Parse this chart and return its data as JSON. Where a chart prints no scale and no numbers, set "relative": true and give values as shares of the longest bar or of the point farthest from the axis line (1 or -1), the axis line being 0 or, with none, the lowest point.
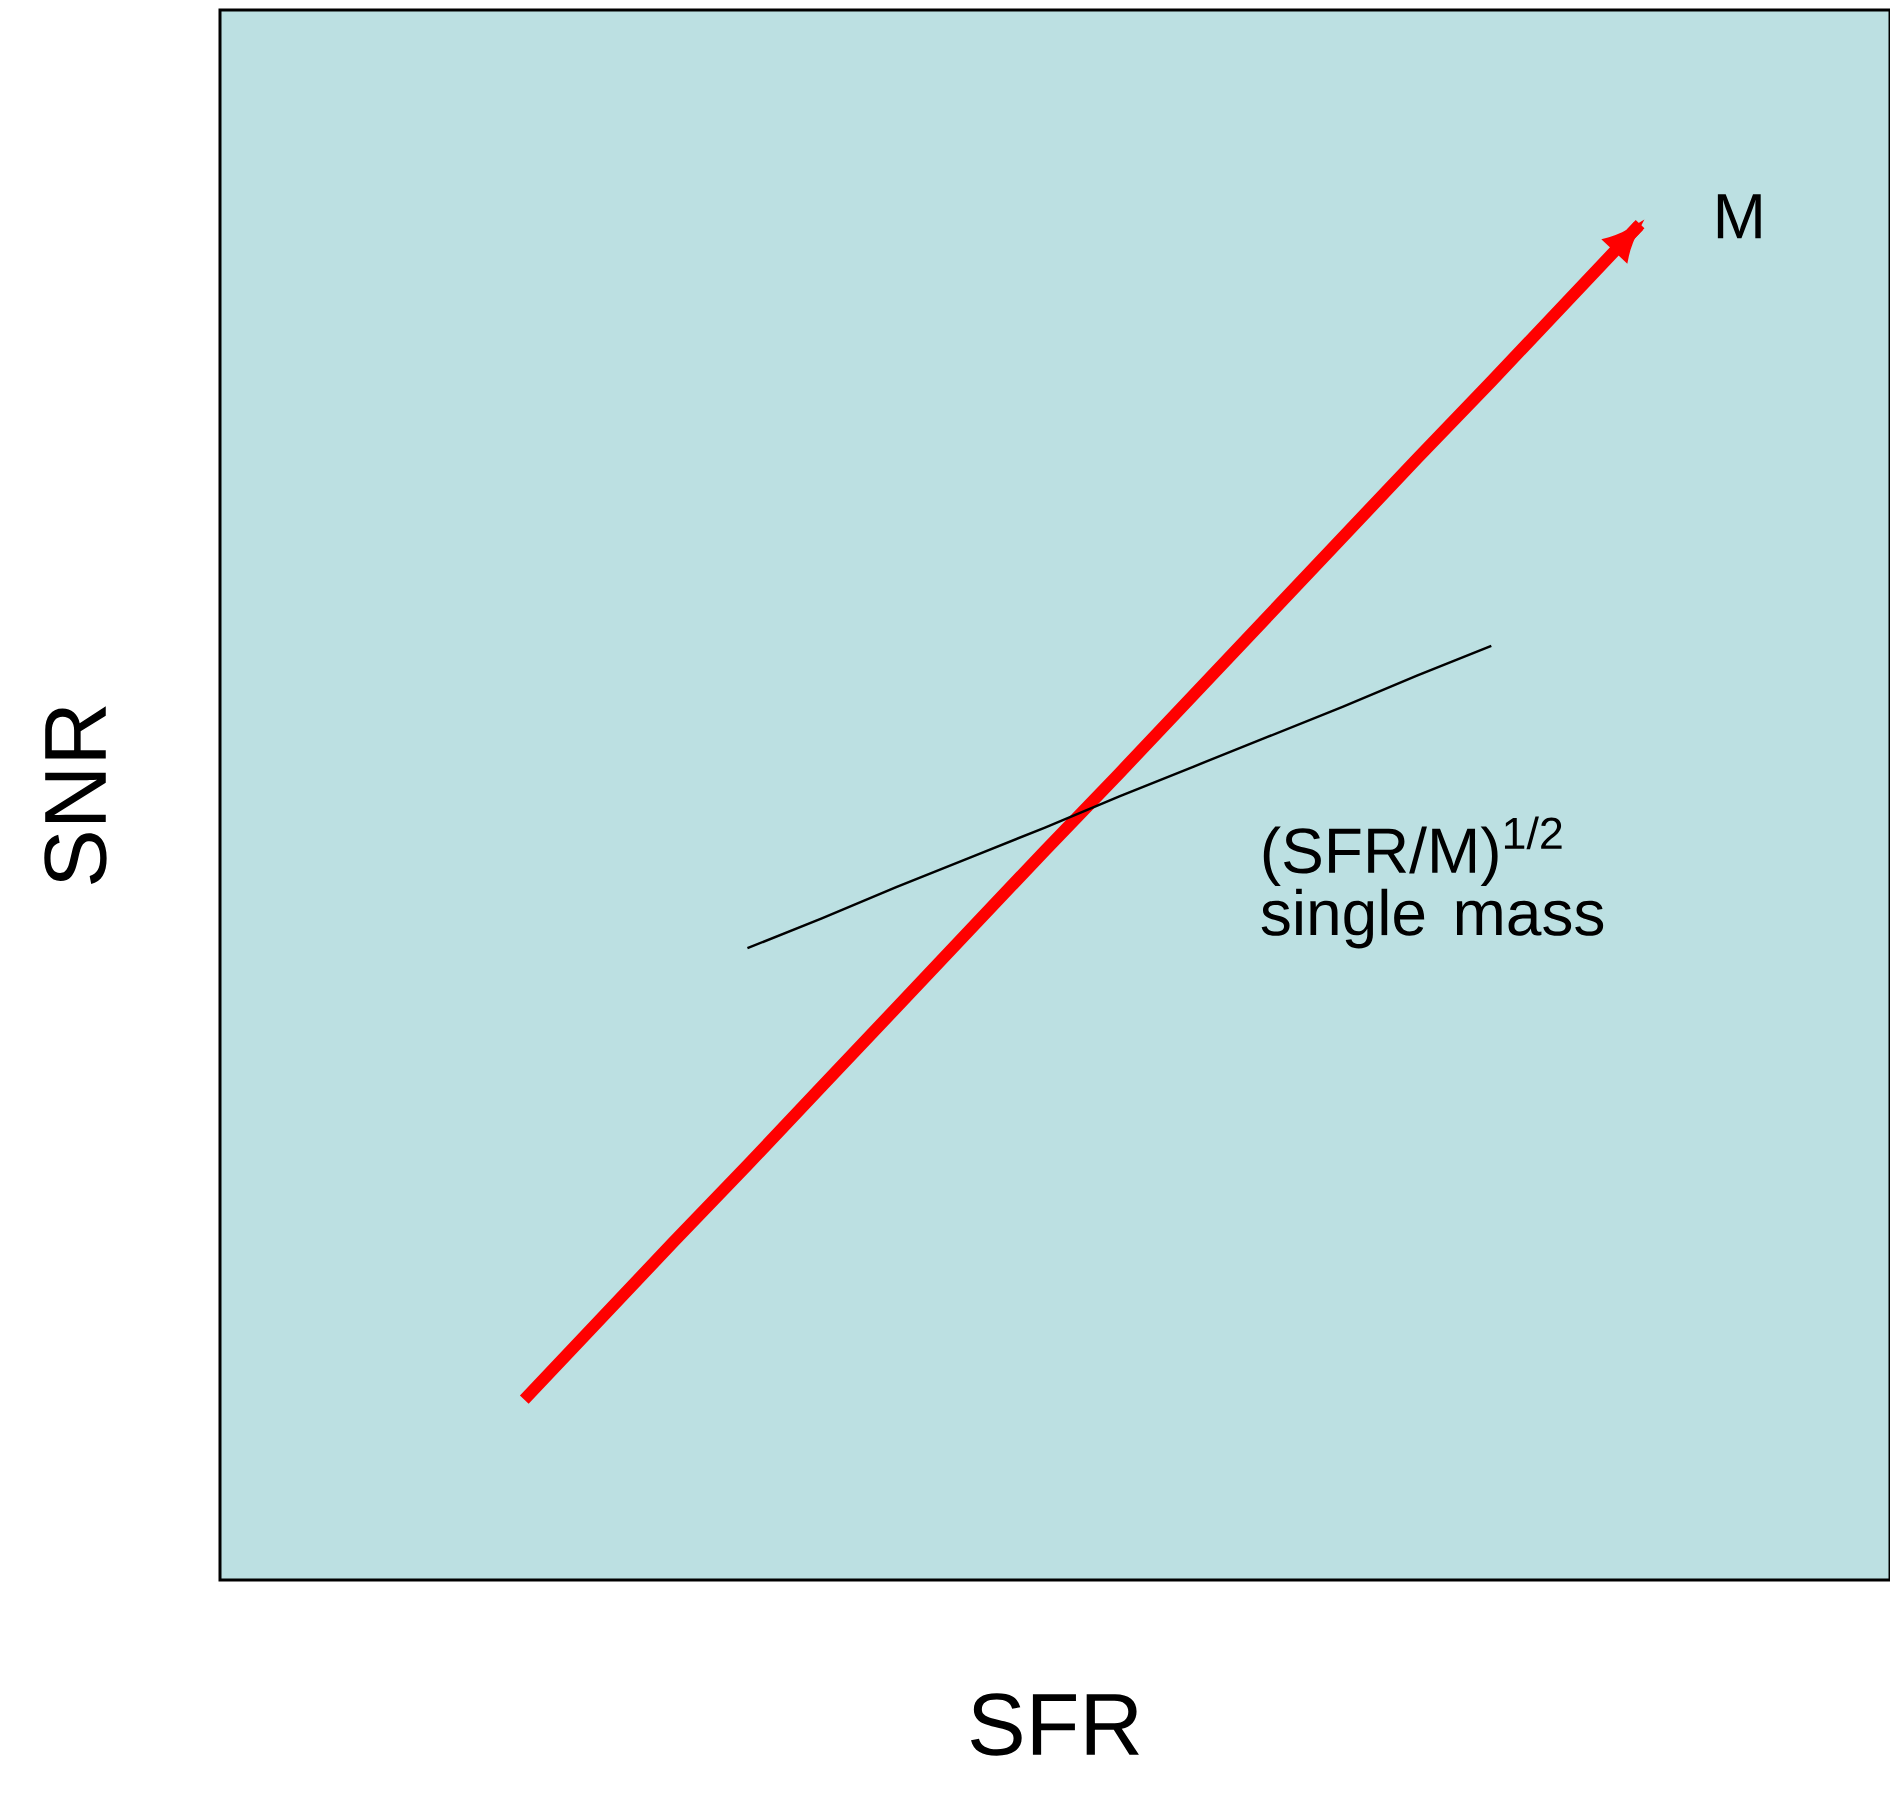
{
  "chart_data": {
    "type": "line",
    "relative": true,
    "xlabel": "SFR",
    "ylabel": "SNR",
    "marker": "none",
    "line_style": "solid",
    "categories": [
      null,
      null,
      null,
      null,
      null,
      null,
      null,
      null,
      null,
      null,
      null,
      null,
      null,
      null,
      null,
      null
    ],
    "series": [
      {
        "name": "M",
        "color": "#ff0000",
        "values": [
          0.133,
          0.191,
          0.249,
          0.306,
          0.364,
          0.422,
          0.48,
          0.538,
          0.595,
          0.653,
          0.711,
          0.769,
          0.827,
          0.884,
          0.942,
          1
        ]
      },
      {
        "name": "(SFR/M)$^{1/2}$ single mass",
        "color": "#000000",
        "values": [
          null,
          null,
          null,
          0.466,
          0.488,
          0.511,
          0.533,
          0.555,
          0.578,
          0.6,
          0.622,
          0.644,
          0.667,
          0.689,
          null,
          null
        ]
      }
    ]
  }
}
